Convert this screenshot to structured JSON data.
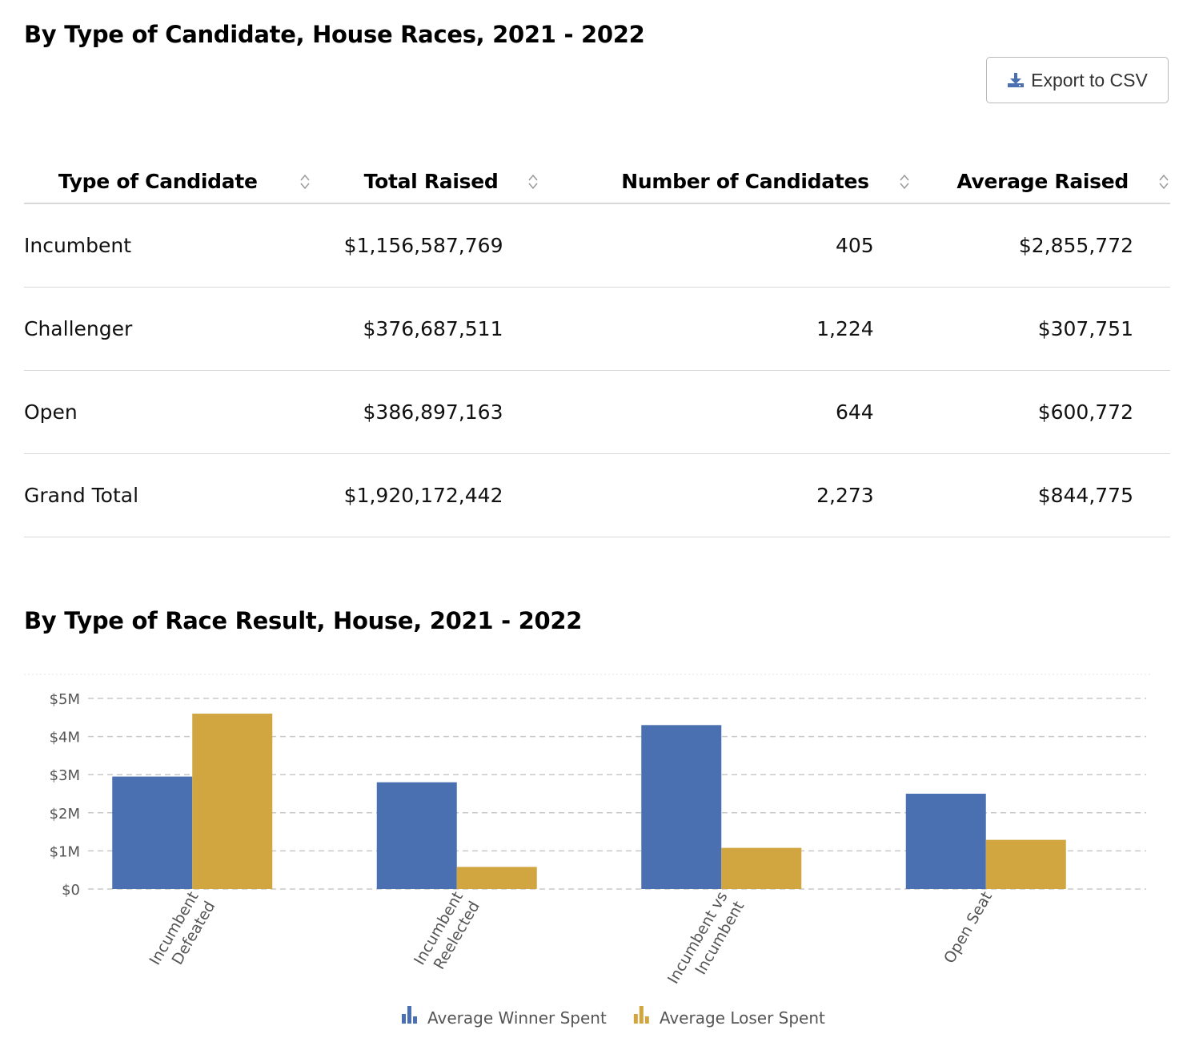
{
  "section1": {
    "title": "By Type of Candidate, House Races, 2021 - 2022",
    "export_label": "Export to CSV"
  },
  "table": {
    "columns": [
      "Type of Candidate",
      "Total Raised",
      "Number of Candidates",
      "Average Raised"
    ],
    "rows": [
      [
        "Incumbent",
        "$1,156,587,769",
        "405",
        "$2,855,772"
      ],
      [
        "Challenger",
        "$376,687,511",
        "1,224",
        "$307,751"
      ],
      [
        "Open",
        "$386,897,163",
        "644",
        "$600,772"
      ],
      [
        "Grand Total",
        "$1,920,172,442",
        "2,273",
        "$844,775"
      ]
    ]
  },
  "section2": {
    "title": "By Type of Race Result, House, 2021 - 2022"
  },
  "chart_data": {
    "type": "bar",
    "categories": [
      [
        "Incumbent",
        "Defeated"
      ],
      [
        "Incumbent",
        "Reelected"
      ],
      [
        "Incumbent vs",
        "Incumbent"
      ],
      [
        "Open Seat"
      ]
    ],
    "series": [
      {
        "name": "Average Winner Spent",
        "color": "#4a70b2",
        "values": [
          2950000,
          2800000,
          4300000,
          2500000
        ]
      },
      {
        "name": "Average Loser Spent",
        "color": "#d1a640",
        "values": [
          4600000,
          580000,
          1080000,
          1290000
        ]
      }
    ],
    "y_ticks": [
      {
        "value": 0,
        "label": "$0"
      },
      {
        "value": 1000000,
        "label": "$1M"
      },
      {
        "value": 2000000,
        "label": "$2M"
      },
      {
        "value": 3000000,
        "label": "$3M"
      },
      {
        "value": 4000000,
        "label": "$4M"
      },
      {
        "value": 5000000,
        "label": "$5M"
      }
    ],
    "ylim": [
      0,
      5000000
    ],
    "grid": true,
    "legend_position": "bottom-center"
  }
}
